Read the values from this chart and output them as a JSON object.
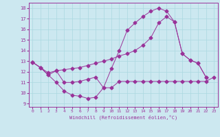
{
  "xlabel": "Windchill (Refroidissement éolien,°C)",
  "background_color": "#cce8f0",
  "line_color": "#993399",
  "grid_color": "#aad8e0",
  "xlim": [
    -0.5,
    23.5
  ],
  "ylim": [
    8.7,
    18.5
  ],
  "xticks": [
    0,
    1,
    2,
    3,
    4,
    5,
    6,
    7,
    8,
    9,
    10,
    11,
    12,
    13,
    14,
    15,
    16,
    17,
    18,
    19,
    20,
    21,
    22,
    23
  ],
  "yticks": [
    9,
    10,
    11,
    12,
    13,
    14,
    15,
    16,
    17,
    18
  ],
  "line1_x": [
    0,
    1,
    2,
    3,
    4,
    5,
    6,
    7,
    8,
    9,
    10,
    11,
    12,
    13,
    14,
    15,
    16,
    17,
    18,
    19,
    20,
    21,
    22,
    23
  ],
  "line1_y": [
    12.9,
    12.4,
    11.7,
    11.0,
    10.2,
    9.8,
    9.7,
    9.5,
    9.6,
    10.5,
    10.5,
    11.1,
    11.1,
    11.1,
    11.1,
    11.1,
    11.1,
    11.1,
    11.1,
    11.1,
    11.1,
    11.1,
    11.1,
    11.5
  ],
  "line2_x": [
    0,
    1,
    2,
    3,
    4,
    5,
    6,
    7,
    8,
    9,
    10,
    11,
    12,
    13,
    14,
    15,
    16,
    17,
    18,
    19,
    20,
    21,
    22
  ],
  "line2_y": [
    12.9,
    12.4,
    11.7,
    12.1,
    11.0,
    11.0,
    11.1,
    11.3,
    11.5,
    10.5,
    12.3,
    14.0,
    15.9,
    16.6,
    17.2,
    17.7,
    18.0,
    17.7,
    16.7,
    13.7,
    13.1,
    12.8,
    11.5
  ],
  "line3_x": [
    0,
    1,
    2,
    3,
    4,
    5,
    6,
    7,
    8,
    9,
    10,
    11,
    12,
    13,
    14,
    15,
    16,
    17,
    18,
    19,
    20,
    21,
    22
  ],
  "line3_y": [
    12.9,
    12.4,
    11.9,
    12.1,
    12.2,
    12.3,
    12.4,
    12.6,
    12.8,
    13.0,
    13.2,
    13.5,
    13.7,
    14.0,
    14.5,
    15.2,
    16.6,
    17.2,
    16.7,
    13.7,
    13.1,
    12.8,
    11.5
  ]
}
